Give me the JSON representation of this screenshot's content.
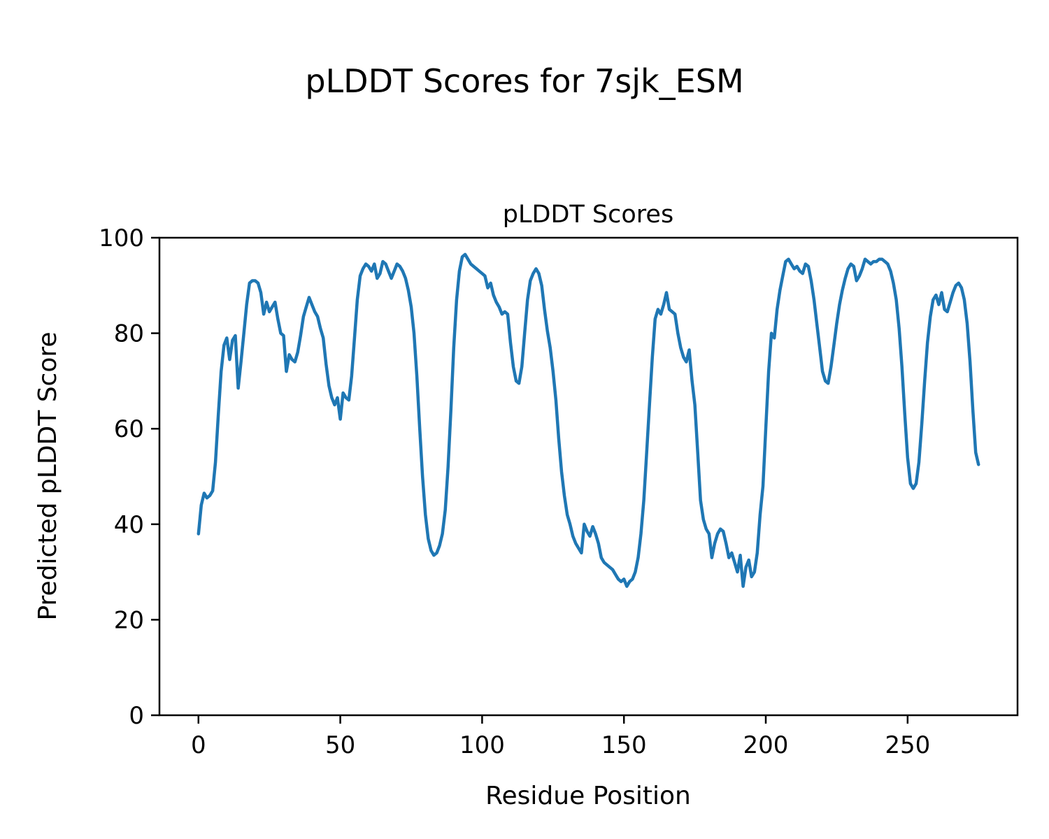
{
  "figure": {
    "suptitle": "pLDDT Scores for 7sjk_ESM",
    "background": "#ffffff"
  },
  "chart_data": {
    "type": "line",
    "title": "pLDDT Scores",
    "xlabel": "Residue Position",
    "ylabel": "Predicted pLDDT Score",
    "series_name": "pLDDT score per residue",
    "line_color": "#1f77b4",
    "line_width": 4.5,
    "axis_color": "#000000",
    "grid": false,
    "legend": "none",
    "xlim": [
      -13.75,
      288.75
    ],
    "ylim": [
      0,
      100
    ],
    "xticks": [
      0,
      50,
      100,
      150,
      200,
      250
    ],
    "yticks": [
      0,
      20,
      40,
      60,
      80,
      100
    ],
    "x_start": 0,
    "x_step": 1,
    "values": [
      38,
      44,
      46.5,
      45.5,
      46,
      47,
      53,
      63,
      72,
      77.5,
      79,
      74.5,
      78.5,
      79.5,
      68.5,
      74,
      80,
      86,
      90.5,
      91,
      91,
      90.5,
      88.5,
      84,
      86.5,
      84.5,
      85.5,
      86.5,
      83,
      80,
      79.5,
      72,
      75.5,
      74.5,
      74,
      76,
      79.5,
      83.5,
      85.5,
      87.5,
      86,
      84.5,
      83.5,
      81,
      79,
      73.5,
      69,
      66.5,
      65,
      66.5,
      62,
      67.5,
      66.5,
      66,
      71,
      79,
      87,
      92,
      93.5,
      94.5,
      94,
      93,
      94.5,
      91.5,
      92.5,
      95,
      94.5,
      93,
      91.5,
      93,
      94.5,
      94,
      93,
      91.5,
      89,
      85.5,
      80,
      71,
      60,
      50,
      42,
      37,
      34.5,
      33.5,
      34,
      35.5,
      38,
      43,
      52,
      64,
      77,
      87,
      93,
      96,
      96.5,
      95.5,
      94.5,
      94,
      93.5,
      93,
      92.5,
      92,
      89.5,
      90.5,
      88,
      86.5,
      85.5,
      84,
      84.5,
      84,
      78,
      73,
      70,
      69.5,
      73,
      80,
      87,
      91,
      92.5,
      93.5,
      92.5,
      90,
      85,
      80.5,
      77,
      72,
      66,
      58,
      51,
      46,
      42,
      40,
      37.5,
      36,
      35,
      34,
      40,
      38.5,
      37.5,
      39.5,
      38,
      36,
      33,
      32,
      31.5,
      31,
      30.5,
      29.5,
      28.5,
      28,
      28.5,
      27,
      28,
      28.5,
      30,
      33,
      38,
      45,
      55,
      65,
      75,
      83,
      85,
      84,
      86,
      88.5,
      85,
      84.5,
      84,
      80,
      77,
      75,
      74,
      76.5,
      70,
      65,
      55,
      45,
      41,
      39,
      38,
      33,
      36,
      38,
      39,
      38.5,
      36,
      33,
      34,
      32,
      30,
      33.5,
      27,
      31,
      32.5,
      29,
      30,
      34,
      42,
      48,
      60,
      72,
      80,
      79,
      85,
      89,
      92,
      95,
      95.5,
      94.5,
      93.5,
      94,
      93,
      92.5,
      94.5,
      94,
      91,
      87,
      82,
      77,
      72,
      70,
      69.5,
      73,
      77.5,
      82,
      86,
      89,
      91.5,
      93.5,
      94.5,
      94,
      91,
      92,
      93.5,
      95.5,
      95,
      94.5,
      95,
      95,
      95.5,
      95.5,
      95,
      94.5,
      93,
      90.5,
      87,
      81,
      73,
      63,
      54,
      48.5,
      47.5,
      48.5,
      53,
      61,
      70,
      78,
      83.5,
      87,
      88,
      86,
      88.5,
      85,
      84.5,
      86.5,
      88.5,
      90,
      90.5,
      89.5,
      87,
      82,
      74,
      64,
      55,
      52.5
    ]
  }
}
